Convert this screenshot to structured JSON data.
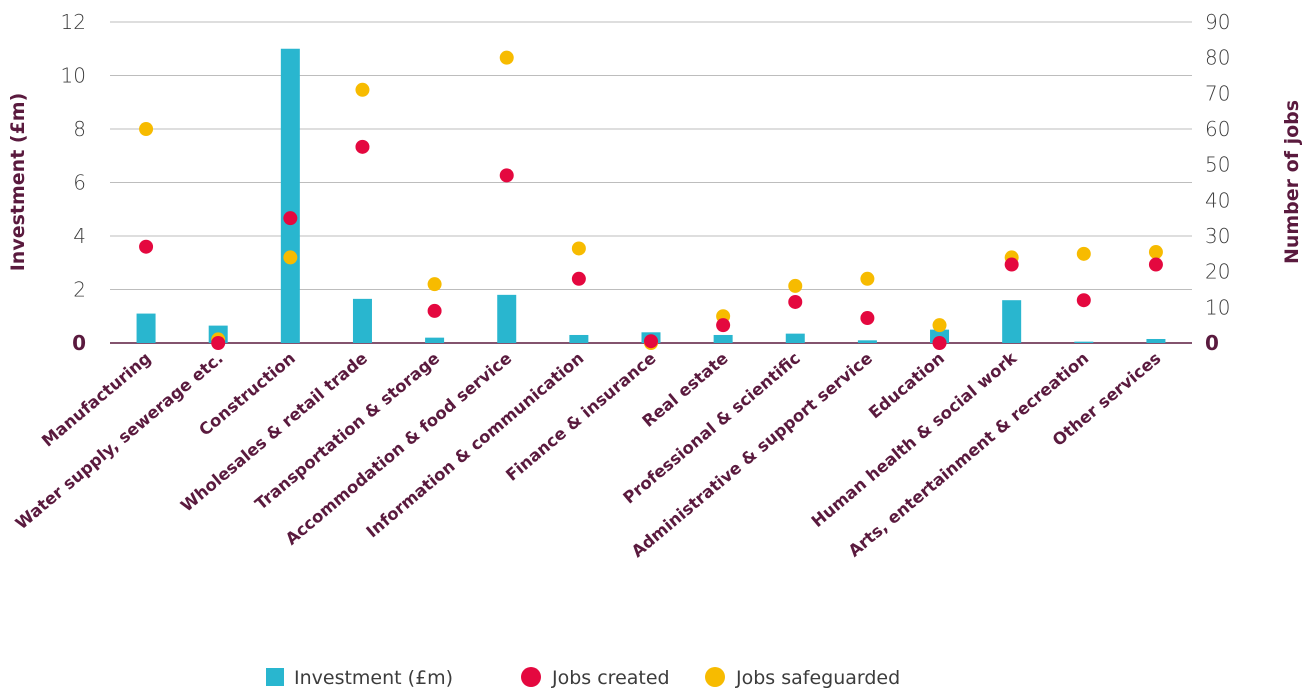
{
  "chart_data": {
    "type": "bar",
    "categories": [
      "Manufacturing",
      "Water supply, sewerage etc.",
      "Construction",
      "Wholesales & retail trade",
      "Transportation & storage",
      "Accommodation & food service",
      "Information & communication",
      "Finance & insurance",
      "Real estate",
      "Professional & scientific",
      "Administrative & support service",
      "Education",
      "Human health & social work",
      "Arts, entertainment & recreation",
      "Other services"
    ],
    "series": [
      {
        "name": "Investment (£m)",
        "kind": "bar",
        "axis": "left",
        "color": "#29b6cf",
        "values": [
          1.1,
          0.65,
          11.0,
          1.65,
          0.2,
          1.8,
          0.3,
          0.4,
          0.3,
          0.35,
          0.1,
          0.5,
          1.6,
          0.05,
          0.15
        ]
      },
      {
        "name": "Jobs created",
        "kind": "scatter",
        "axis": "right",
        "color": "#e4083f",
        "values": [
          27,
          0,
          35,
          55,
          9,
          47,
          18,
          0.5,
          5,
          11.5,
          7,
          0,
          22,
          12,
          22
        ]
      },
      {
        "name": "Jobs safeguarded",
        "kind": "scatter",
        "axis": "right",
        "color": "#f7bb00",
        "values": [
          60,
          1,
          24,
          71,
          16.5,
          80,
          26.5,
          0,
          7.5,
          16,
          18,
          5,
          24,
          25,
          25.5
        ]
      }
    ],
    "ylabel": "Investment (£m)",
    "y2label": "Number of jobs",
    "ylim": [
      0,
      12
    ],
    "y2lim": [
      0,
      90
    ],
    "yticks": [
      "0",
      "2",
      "4",
      "6",
      "8",
      "10",
      "12"
    ],
    "y2ticks": [
      "0",
      "10",
      "20",
      "30",
      "40",
      "50",
      "60",
      "70",
      "80",
      "90"
    ],
    "grid": true,
    "legend_position": "bottom-center"
  }
}
